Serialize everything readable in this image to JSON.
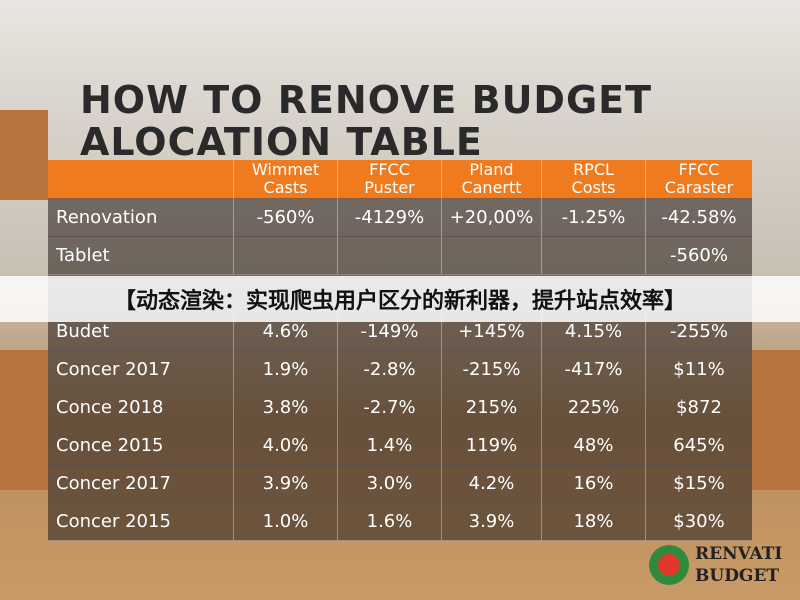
{
  "header": {
    "title": [
      "HOW TO RENOVE BUDGET",
      "ALOCATION TABLE"
    ]
  },
  "table": {
    "columns": [
      [
        "Wimmet",
        "Casts"
      ],
      [
        "FFCC",
        "Puster"
      ],
      [
        "Pland",
        "Canertt"
      ],
      [
        "RPCL",
        "Costs"
      ],
      [
        "FFCC",
        "Caraster"
      ]
    ],
    "rows": [
      [
        "Renovation",
        "-560%",
        "-4129%",
        "+20,00%",
        "-1.25%",
        "-42.58%"
      ],
      [
        "Tablet",
        null,
        null,
        null,
        null,
        "-560%"
      ],
      [
        "Budet",
        "4.6%",
        "-149%",
        "+145%",
        "4.15%",
        "-255%"
      ],
      [
        "Concer 2017",
        "1.9%",
        "-2.8%",
        "-215%",
        "-417%",
        "$11%"
      ],
      [
        "Conce 2018",
        "3.8%",
        "-2.7%",
        "215%",
        "225%",
        "$872"
      ],
      [
        "Conce 2015",
        "4.0%",
        "1.4%",
        "119%",
        "48%",
        "645%"
      ],
      [
        "Concer 2017",
        "3.9%",
        "3.0%",
        "4.2%",
        "16%",
        "$15%"
      ],
      [
        "Concer 2015",
        "1.0%",
        "1.6%",
        "3.9%",
        "18%",
        "$30%"
      ]
    ]
  },
  "banner": "【动态渲染：实现爬虫用户区分的新利器，提升站点效率】",
  "logo": [
    "RENVATI",
    "BUDGET"
  ]
}
